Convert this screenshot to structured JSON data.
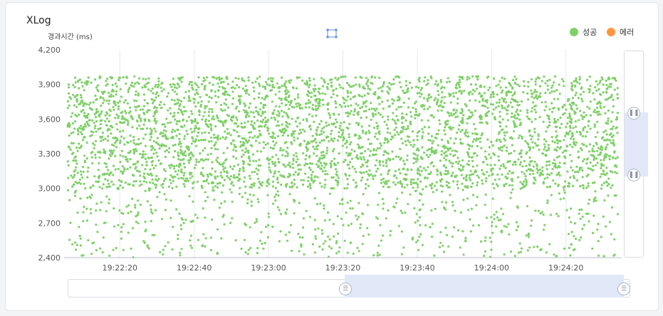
{
  "card": {
    "title": "XLog"
  },
  "legend": [
    {
      "label": "성공",
      "color": "#7ed067"
    },
    {
      "label": "에러",
      "color": "#ff9640"
    }
  ],
  "toolbar": {
    "zoom_icon": "fit-zoom-icon"
  },
  "vertical_range": {
    "selected_range_fraction": [
      0.3,
      0.61
    ]
  },
  "horizontal_range": {
    "selected_range_fraction": [
      0.5,
      1.0
    ]
  },
  "chart_data": {
    "type": "scatter",
    "title": "",
    "xlabel": "",
    "ylabel": "경과시간 (ms)",
    "ylim": [
      2400,
      4200
    ],
    "yticks": [
      "4,200",
      "3,900",
      "3,600",
      "3,300",
      "3,000",
      "2,700",
      "2,400"
    ],
    "xlim": [
      "19:22:05",
      "19:24:35"
    ],
    "xticks": [
      "19:22:20",
      "19:22:40",
      "19:23:00",
      "19:23:20",
      "19:23:40",
      "19:24:00",
      "19:24:20"
    ],
    "series": [
      {
        "name": "성공",
        "color": "#7ed067",
        "dense_band_ms": [
          3000,
          4000
        ],
        "sparse_band_ms": [
          2400,
          3000
        ],
        "approx_point_count": 4200
      },
      {
        "name": "에러",
        "color": "#ff9640",
        "approx_point_count": 0
      }
    ],
    "grid": true,
    "legend_position": "top-right"
  }
}
